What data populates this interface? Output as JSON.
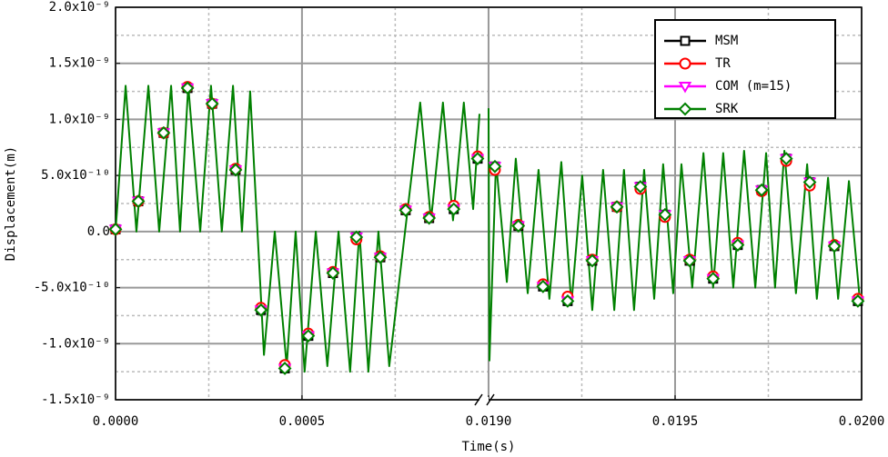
{
  "chart_data": {
    "type": "line",
    "xlabel": "Time(s)",
    "ylabel": "Displacement(m)",
    "xlim": [
      [
        0,
        0.000976
      ],
      [
        0.018983,
        0.02
      ]
    ],
    "xticks": [
      {
        "value": 0,
        "label": "0.0000"
      },
      {
        "value": 0.0005,
        "label": "0.0005"
      },
      {
        "value": 0.019,
        "label": "0.0190"
      },
      {
        "value": 0.0195,
        "label": "0.0195"
      },
      {
        "value": 0.02,
        "label": "0.0200"
      }
    ],
    "ylim": [
      -1.5e-09,
      2e-09
    ],
    "yticks": [
      {
        "value": -1.5e-09,
        "label": "-1.5x10⁻⁹"
      },
      {
        "value": -1e-09,
        "label": "-1.0x10⁻⁹"
      },
      {
        "value": -5e-10,
        "label": "-5.0x10⁻¹⁰"
      },
      {
        "value": 0,
        "label": "0.0"
      },
      {
        "value": 5e-10,
        "label": "5.0x10⁻¹⁰"
      },
      {
        "value": 1e-09,
        "label": "1.0x10⁻⁹"
      },
      {
        "value": 1.5e-09,
        "label": "1.5x10⁻⁹"
      },
      {
        "value": 2e-09,
        "label": "2.0x10⁻⁹"
      }
    ],
    "grid": true,
    "minor_grid": true,
    "legend": "upper right",
    "series": [
      {
        "name": "MSM",
        "color": "#000000",
        "marker": "square",
        "x": [
          0,
          6.1e-05,
          0.000129,
          0.000193,
          0.000259,
          0.000322,
          0.00039,
          0.000454,
          0.000517,
          0.000583,
          0.000646,
          0.00071,
          0.000778,
          0.000841,
          0.000907,
          0.000971,
          0.019017,
          0.01908,
          0.019146,
          0.019212,
          0.019278,
          0.019344,
          0.019407,
          0.019473,
          0.019539,
          0.019602,
          0.019668,
          0.019732,
          0.019798,
          0.019861,
          0.019927,
          0.01999
        ],
        "values": [
          2e-11,
          2.7e-10,
          8.8e-10,
          1.28e-09,
          1.14e-09,
          5.5e-10,
          -7e-10,
          -1.22e-09,
          -9.3e-10,
          -3.7e-10,
          -5e-11,
          -2.3e-10,
          1.9e-10,
          1.2e-10,
          2e-10,
          6.5e-10,
          5.8e-10,
          5e-11,
          -4.9e-10,
          -6.2e-10,
          -2.6e-10,
          2.2e-10,
          4e-10,
          1.5e-10,
          -2.6e-10,
          -4.2e-10,
          -1.2e-10,
          3.7e-10,
          6.5e-10,
          4.4e-10,
          -1.3e-10,
          -6.2e-10
        ]
      },
      {
        "name": "TR",
        "color": "#ff0000",
        "marker": "circle",
        "x": [
          0,
          6.1e-05,
          0.000129,
          0.000193,
          0.000259,
          0.000322,
          0.00039,
          0.000454,
          0.000517,
          0.000583,
          0.000646,
          0.00071,
          0.000778,
          0.000841,
          0.000907,
          0.000971,
          0.019017,
          0.01908,
          0.019146,
          0.019212,
          0.019278,
          0.019344,
          0.019407,
          0.019473,
          0.019539,
          0.019602,
          0.019668,
          0.019732,
          0.019798,
          0.019861,
          0.019927,
          0.01999
        ],
        "values": [
          2e-11,
          2.7e-10,
          8.8e-10,
          1.29e-09,
          1.14e-09,
          5.6e-10,
          -6.8e-10,
          -1.19e-09,
          -9.1e-10,
          -3.6e-10,
          -7e-11,
          -2.2e-10,
          2e-10,
          1.3e-10,
          2.3e-10,
          6.7e-10,
          5.5e-10,
          6e-11,
          -4.7e-10,
          -5.8e-10,
          -2.5e-10,
          2.2e-10,
          3.8e-10,
          1.3e-10,
          -2.5e-10,
          -4e-10,
          -1e-10,
          3.6e-10,
          6.3e-10,
          4.1e-10,
          -1.2e-10,
          -6e-10
        ]
      },
      {
        "name": "COM (m=15)",
        "color": "#ff00ff",
        "marker": "triangle-down",
        "x": [
          0,
          6.1e-05,
          0.000129,
          0.000193,
          0.000259,
          0.000322,
          0.00039,
          0.000454,
          0.000517,
          0.000583,
          0.000646,
          0.00071,
          0.000778,
          0.000841,
          0.000907,
          0.000971,
          0.019017,
          0.01908,
          0.019146,
          0.019212,
          0.019278,
          0.019344,
          0.019407,
          0.019473,
          0.019539,
          0.019602,
          0.019668,
          0.019732,
          0.019798,
          0.019861,
          0.019927,
          0.01999
        ],
        "values": [
          2e-11,
          2.7e-10,
          8.8e-10,
          1.28e-09,
          1.14e-09,
          5.5e-10,
          -7e-10,
          -1.22e-09,
          -9.3e-10,
          -3.7e-10,
          -5e-11,
          -2.3e-10,
          1.9e-10,
          1.2e-10,
          2e-10,
          6.5e-10,
          5.8e-10,
          5e-11,
          -4.9e-10,
          -6.2e-10,
          -2.6e-10,
          2.2e-10,
          4e-10,
          1.5e-10,
          -2.6e-10,
          -4.2e-10,
          -1.2e-10,
          3.7e-10,
          6.5e-10,
          4.4e-10,
          -1.3e-10,
          -6.2e-10
        ]
      },
      {
        "name": "SRK",
        "color": "#008000",
        "marker": "diamond",
        "x": [
          0,
          6.1e-05,
          0.000129,
          0.000193,
          0.000259,
          0.000322,
          0.00039,
          0.000454,
          0.000517,
          0.000583,
          0.000646,
          0.00071,
          0.000778,
          0.000841,
          0.000907,
          0.000971,
          0.019017,
          0.01908,
          0.019146,
          0.019212,
          0.019278,
          0.019344,
          0.019407,
          0.019473,
          0.019539,
          0.019602,
          0.019668,
          0.019732,
          0.019798,
          0.019861,
          0.019927,
          0.01999
        ],
        "values": [
          2e-11,
          2.7e-10,
          8.8e-10,
          1.28e-09,
          1.14e-09,
          5.5e-10,
          -7e-10,
          -1.22e-09,
          -9.3e-10,
          -3.7e-10,
          -5e-11,
          -2.3e-10,
          1.9e-10,
          1.2e-10,
          2e-10,
          6.5e-10,
          5.8e-10,
          5e-11,
          -4.9e-10,
          -6.2e-10,
          -2.6e-10,
          2.2e-10,
          4e-10,
          1.5e-10,
          -2.6e-10,
          -4.2e-10,
          -1.2e-10,
          3.7e-10,
          6.5e-10,
          4.4e-10,
          -1.3e-10,
          -6.2e-10
        ],
        "line_x": [
          0,
          2.7e-05,
          5.6e-05,
          8.8e-05,
          0.000117,
          0.000149,
          0.000173,
          0.000195,
          0.000227,
          0.000256,
          0.000285,
          0.000315,
          0.000339,
          0.000361,
          0.000398,
          0.000427,
          0.000459,
          0.000483,
          0.000507,
          0.000537,
          0.000568,
          0.000598,
          0.000629,
          0.000654,
          0.000678,
          0.000705,
          0.000734,
          0.000817,
          0.000846,
          0.000878,
          0.000905,
          0.000934,
          0.000959,
          0.000976,
          null,
          0.019,
          0.0190024,
          0.01902,
          0.019049,
          0.019073,
          0.019105,
          0.019134,
          0.019163,
          0.019195,
          0.019222,
          0.019251,
          0.019278,
          0.019307,
          0.019337,
          0.019363,
          0.01939,
          0.019417,
          0.019444,
          0.019468,
          0.019495,
          0.019517,
          0.019546,
          0.019576,
          0.019602,
          0.019629,
          0.019656,
          0.019685,
          0.019715,
          0.019744,
          0.019768,
          0.019793,
          0.019824,
          0.019854,
          0.01988,
          0.01991,
          0.019937,
          0.019966,
          0.019995,
          0.02
        ],
        "line_values": [
          0,
          1.3e-09,
          0,
          1.3e-09,
          0,
          1.3e-09,
          0,
          1.3e-09,
          0,
          1.3e-09,
          0,
          1.3e-09,
          0,
          1.25e-09,
          -1.1e-09,
          0,
          -1.2e-09,
          0,
          -1.25e-09,
          0,
          -1.2e-09,
          0,
          -1.25e-09,
          0,
          -1.25e-09,
          0,
          -1.2e-09,
          1.15e-09,
          1e-10,
          1.15e-09,
          1e-10,
          1.15e-09,
          2e-10,
          1.05e-09,
          null,
          1.1e-09,
          -1.15e-09,
          6.2e-10,
          -4.5e-10,
          6.5e-10,
          -5.5e-10,
          5.5e-10,
          -6e-10,
          6.2e-10,
          -6.5e-10,
          5e-10,
          -7e-10,
          5.5e-10,
          -7e-10,
          5.5e-10,
          -7e-10,
          5.5e-10,
          -6e-10,
          6e-10,
          -5.5e-10,
          6e-10,
          -5e-10,
          7e-10,
          -5e-10,
          7e-10,
          -5e-10,
          7.2e-10,
          -5e-10,
          7e-10,
          -5e-10,
          7.2e-10,
          -5.5e-10,
          6e-10,
          -6e-10,
          4.8e-10,
          -6e-10,
          4.5e-10,
          -6e-10,
          -5.5e-10
        ]
      }
    ]
  }
}
